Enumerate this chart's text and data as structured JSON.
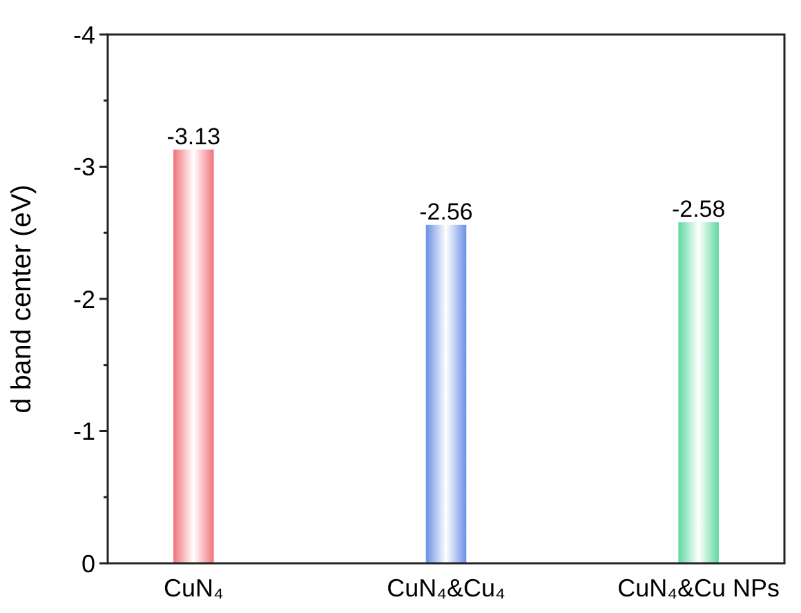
{
  "chart_data": {
    "type": "bar",
    "ylabel": "d band center (eV)",
    "categories": [
      "CuN₄",
      "CuN₄&Cu₄",
      "CuN₄&Cu NPs"
    ],
    "values": [
      -3.13,
      -2.56,
      -2.58
    ],
    "colors": [
      "#f07378",
      "#6a8fe6",
      "#5fd8a0"
    ],
    "ylim": [
      0,
      -4
    ],
    "yticks": [
      0,
      {
        "value": -0.5,
        "label": null
      },
      -1,
      {
        "value": -1.5,
        "label": null
      },
      -2,
      {
        "value": -2.5,
        "label": null
      },
      -3,
      {
        "value": -3.5,
        "label": null
      },
      -4
    ],
    "data_labels": true
  }
}
